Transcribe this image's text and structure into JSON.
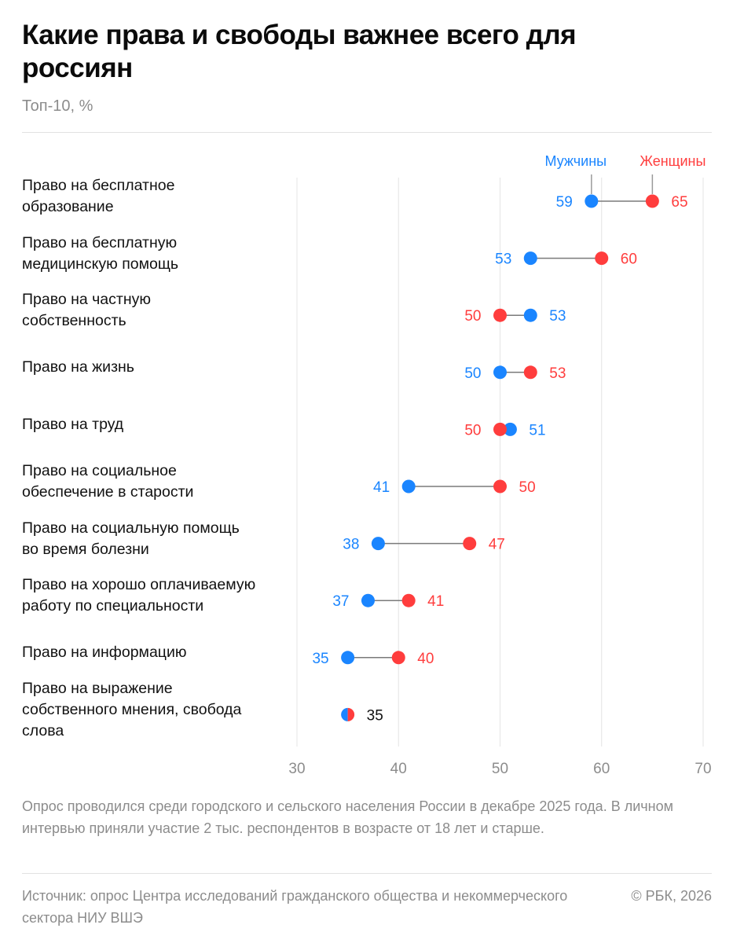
{
  "title": "Какие права и свободы важнее всего для россиян",
  "subtitle": "Топ-10, %",
  "colors": {
    "men": "#1a85ff",
    "women": "#ff3d3d",
    "grid": "#e4e4e4",
    "connector": "#7a7a7a",
    "axis_text": "#8c8c8c",
    "tie_text": "#111111"
  },
  "chart_data": {
    "type": "dumbbell",
    "xlim": [
      30,
      70
    ],
    "xticks": [
      30,
      40,
      50,
      60,
      70
    ],
    "legend": {
      "men": "Мужчины",
      "women": "Женщины",
      "position": "top-right"
    },
    "series": [
      {
        "name": "Мужчины",
        "values": [
          59,
          53,
          53,
          50,
          51,
          41,
          38,
          37,
          35,
          35
        ]
      },
      {
        "name": "Женщины",
        "values": [
          65,
          60,
          50,
          53,
          50,
          50,
          47,
          41,
          40,
          35
        ]
      }
    ],
    "categories": [
      "Право на бесплатное образование",
      "Право на бесплатную медицинскую помощь",
      "Право на частную собственность",
      "Право на жизнь",
      "Право на труд",
      "Право на социальное обеспечение в старости",
      "Право на социальную помощь во время болезни",
      "Право на хорошо оплачиваемую работу по специальности",
      "Право на информацию",
      "Право на выражение собственного мнения, свобода слова"
    ]
  },
  "row_labels": [
    [
      "Право на бесплатное",
      "образование"
    ],
    [
      "Право на бесплатную",
      "медицинскую помощь"
    ],
    [
      "Право на частную",
      "собственность"
    ],
    [
      "Право на жизнь"
    ],
    [
      "Право на труд"
    ],
    [
      "Право на социальное",
      "обеспечение в старости"
    ],
    [
      "Право на социальную помощь",
      "во время болезни"
    ],
    [
      "Право на хорошо оплачиваемую",
      "работу по специальности"
    ],
    [
      "Право на информацию"
    ],
    [
      "Право на выражение",
      "собственного мнения, свобода",
      "слова"
    ]
  ],
  "note": "Опрос проводился среди городского и сельского населения России в декабре 2025 года. В личном интервью приняли участие 2 тыс. респондентов в возрасте от 18 лет и старше.",
  "source": "Источник: опрос Центра исследований гражданского общества и некоммерческого сектора НИУ ВШЭ",
  "copyright": "© РБК, 2026"
}
